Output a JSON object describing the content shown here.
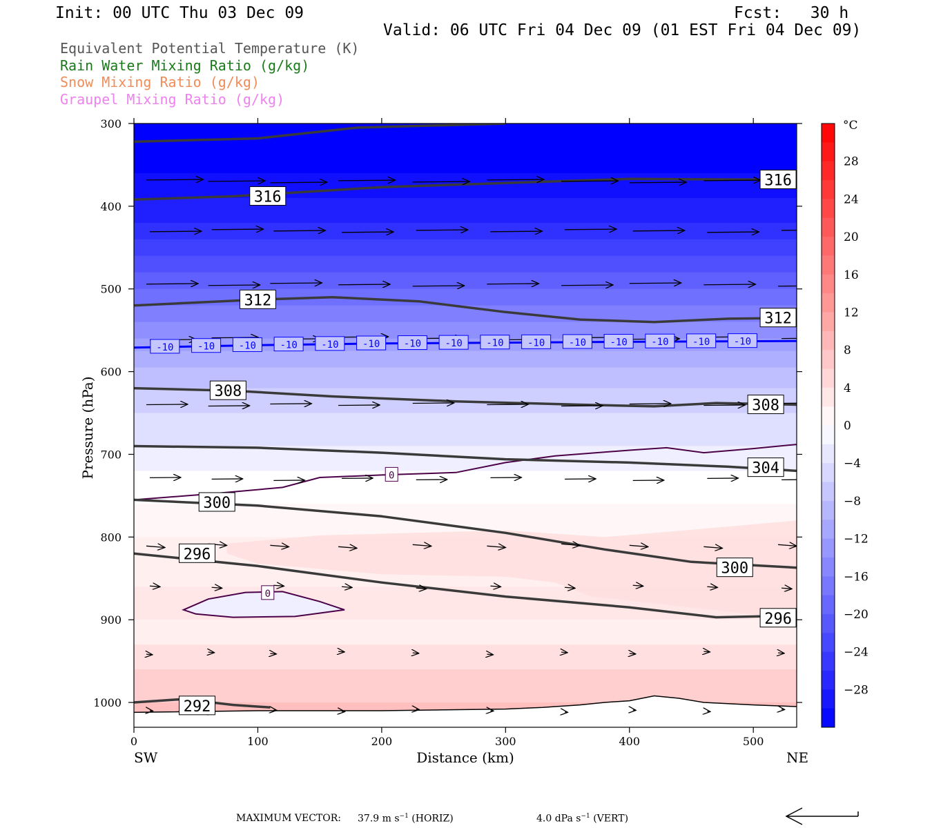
{
  "header": {
    "init": "Init: 00 UTC Thu 03 Dec 09",
    "fcst": "Fcst:   30 h",
    "valid": "Valid: 06 UTC Fri 04 Dec 09 (01 EST Fri 04 Dec 09)"
  },
  "fields": [
    {
      "label": "Equivalent Potential Temperature (K)",
      "color": "#555555"
    },
    {
      "label": "Rain Water Mixing Ratio (g/kg)",
      "color": "#1a7a1a"
    },
    {
      "label": "Snow Mixing Ratio (g/kg)",
      "color": "#f08c5a"
    },
    {
      "label": "Graupel Mixing Ratio (g/kg)",
      "color": "#ee82ee"
    }
  ],
  "chart_data": {
    "type": "heatmap",
    "xlabel": "Distance (km)",
    "ylabel": "Pressure (hPa)",
    "xlim": [
      0,
      535
    ],
    "ylim": [
      1030,
      300
    ],
    "x_ticks": [
      0,
      100,
      200,
      300,
      400,
      500
    ],
    "y_ticks": [
      300,
      400,
      500,
      600,
      700,
      800,
      900,
      1000
    ],
    "x_end_labels": {
      "left": "SW",
      "right": "NE"
    },
    "colorbar": {
      "unit": "°C",
      "ticks": [
        28,
        24,
        20,
        16,
        12,
        8,
        4,
        0,
        -4,
        -8,
        -12,
        -16,
        -20,
        -24,
        -28
      ],
      "levels": [
        32,
        30,
        28,
        26,
        24,
        22,
        20,
        18,
        16,
        14,
        12,
        10,
        8,
        6,
        4,
        2,
        0,
        -2,
        -4,
        -6,
        -8,
        -10,
        -12,
        -14,
        -16,
        -18,
        -20,
        -22,
        -24,
        -26,
        -28,
        -30,
        -32
      ],
      "warm_color": "#ff0000",
      "cold_color": "#0000ff"
    },
    "temperature_bands": [
      {
        "p": 300,
        "t": -34
      },
      {
        "p": 330,
        "t": -32
      },
      {
        "p": 360,
        "t": -30
      },
      {
        "p": 390,
        "t": -28
      },
      {
        "p": 420,
        "t": -26
      },
      {
        "p": 440,
        "t": -24
      },
      {
        "p": 460,
        "t": -22
      },
      {
        "p": 480,
        "t": -20
      },
      {
        "p": 500,
        "t": -18
      },
      {
        "p": 520,
        "t": -16
      },
      {
        "p": 540,
        "t": -14
      },
      {
        "p": 560,
        "t": -12
      },
      {
        "p": 575,
        "t": -10
      },
      {
        "p": 595,
        "t": -8
      },
      {
        "p": 620,
        "t": -6
      },
      {
        "p": 650,
        "t": -4
      },
      {
        "p": 690,
        "t": -2
      },
      {
        "p": 720,
        "t": 0
      },
      {
        "p": 760,
        "t": 1
      },
      {
        "p": 800,
        "t": 2
      },
      {
        "p": 860,
        "t": 3
      },
      {
        "p": 900,
        "t": 2
      },
      {
        "p": 930,
        "t": 4
      },
      {
        "p": 960,
        "t": 6
      },
      {
        "p": 1000,
        "t": 8
      },
      {
        "p": 1030,
        "t": 8
      }
    ],
    "theta_e_contours": [
      {
        "label": "316",
        "label_positions": [
          [
            108,
            388
          ],
          [
            520,
            368
          ]
        ],
        "points": [
          [
            0,
            392
          ],
          [
            80,
            388
          ],
          [
            200,
            377
          ],
          [
            300,
            372
          ],
          [
            400,
            367
          ],
          [
            535,
            368
          ]
        ]
      },
      {
        "label": "312",
        "label_positions": [
          [
            100,
            513
          ],
          [
            520,
            535
          ]
        ],
        "points": [
          [
            0,
            520
          ],
          [
            100,
            513
          ],
          [
            160,
            510
          ],
          [
            230,
            515
          ],
          [
            300,
            528
          ],
          [
            360,
            537
          ],
          [
            420,
            540
          ],
          [
            480,
            536
          ],
          [
            535,
            535
          ]
        ]
      },
      {
        "label": "308",
        "label_positions": [
          [
            76,
            623
          ],
          [
            510,
            640
          ]
        ],
        "points": [
          [
            0,
            620
          ],
          [
            80,
            623
          ],
          [
            160,
            630
          ],
          [
            260,
            636
          ],
          [
            360,
            640
          ],
          [
            420,
            642
          ],
          [
            470,
            638
          ],
          [
            535,
            640
          ]
        ]
      },
      {
        "label": "304",
        "label_positions": [
          [
            510,
            716
          ]
        ],
        "points": [
          [
            0,
            690
          ],
          [
            100,
            692
          ],
          [
            200,
            698
          ],
          [
            300,
            706
          ],
          [
            400,
            710
          ],
          [
            480,
            715
          ],
          [
            535,
            720
          ]
        ]
      },
      {
        "label": "300",
        "label_positions": [
          [
            67,
            758
          ],
          [
            485,
            837
          ]
        ],
        "points": [
          [
            0,
            755
          ],
          [
            100,
            762
          ],
          [
            200,
            775
          ],
          [
            300,
            795
          ],
          [
            380,
            815
          ],
          [
            450,
            830
          ],
          [
            535,
            837
          ]
        ]
      },
      {
        "label": "296",
        "label_positions": [
          [
            51,
            820
          ],
          [
            520,
            898
          ]
        ],
        "points": [
          [
            0,
            820
          ],
          [
            100,
            835
          ],
          [
            200,
            855
          ],
          [
            300,
            872
          ],
          [
            400,
            885
          ],
          [
            470,
            897
          ],
          [
            535,
            895
          ]
        ]
      },
      {
        "label": "292",
        "label_positions": [
          [
            51,
            1004
          ]
        ],
        "points": [
          [
            0,
            1000
          ],
          [
            40,
            996
          ],
          [
            80,
            1003
          ],
          [
            110,
            1006
          ]
        ]
      }
    ],
    "isotherms": [
      {
        "label": "-10",
        "value": -10,
        "color": "#0000ff",
        "label_count": 15,
        "points": [
          [
            0,
            571
          ],
          [
            100,
            568
          ],
          [
            200,
            566
          ],
          [
            300,
            565
          ],
          [
            400,
            564
          ],
          [
            535,
            563
          ]
        ]
      },
      {
        "label": "0",
        "value": 0,
        "color": "#4b0048",
        "label_positions": [
          [
            208,
            725
          ]
        ],
        "points": [
          [
            0,
            755
          ],
          [
            60,
            748
          ],
          [
            120,
            740
          ],
          [
            150,
            728
          ],
          [
            200,
            725
          ],
          [
            260,
            722
          ],
          [
            300,
            710
          ],
          [
            340,
            702
          ],
          [
            400,
            695
          ],
          [
            430,
            692
          ],
          [
            460,
            698
          ],
          [
            500,
            693
          ],
          [
            535,
            688
          ]
        ]
      },
      {
        "label": "0",
        "value": 0,
        "color": "#4b0048",
        "closed": true,
        "label_positions": [
          [
            108,
            868
          ]
        ],
        "points": [
          [
            40,
            888
          ],
          [
            60,
            875
          ],
          [
            90,
            867
          ],
          [
            120,
            866
          ],
          [
            150,
            878
          ],
          [
            170,
            888
          ],
          [
            130,
            896
          ],
          [
            80,
            897
          ],
          [
            50,
            893
          ]
        ]
      }
    ],
    "terrain": [
      [
        0,
        1012
      ],
      [
        100,
        1010
      ],
      [
        200,
        1010
      ],
      [
        300,
        1008
      ],
      [
        330,
        1006
      ],
      [
        360,
        1003
      ],
      [
        380,
        1000
      ],
      [
        400,
        998
      ],
      [
        420,
        992
      ],
      [
        440,
        995
      ],
      [
        460,
        1000
      ],
      [
        500,
        1003
      ],
      [
        535,
        1005
      ]
    ],
    "wind_rows": [
      {
        "p": 370,
        "len": 0.55
      },
      {
        "p": 430,
        "len": 0.5
      },
      {
        "p": 495,
        "len": 0.5
      },
      {
        "p": 560,
        "len": 0.45
      },
      {
        "p": 640,
        "len": 0.4
      },
      {
        "p": 730,
        "len": 0.3
      },
      {
        "p": 810,
        "len": 0.18
      },
      {
        "p": 860,
        "len": 0.1
      },
      {
        "p": 940,
        "len": 0.06
      },
      {
        "p": 1010,
        "len": 0.03
      }
    ],
    "wind_x": [
      10,
      60,
      110,
      165,
      225,
      285,
      345,
      400,
      460,
      520
    ],
    "max_vector_text": "MAXIMUM VECTOR:",
    "max_vector_horiz": "37.9 m s",
    "max_vector_horiz_unit": "(HORIZ)",
    "max_vector_vert": "4.0 dPa s",
    "max_vector_vert_unit": "(VERT)"
  }
}
